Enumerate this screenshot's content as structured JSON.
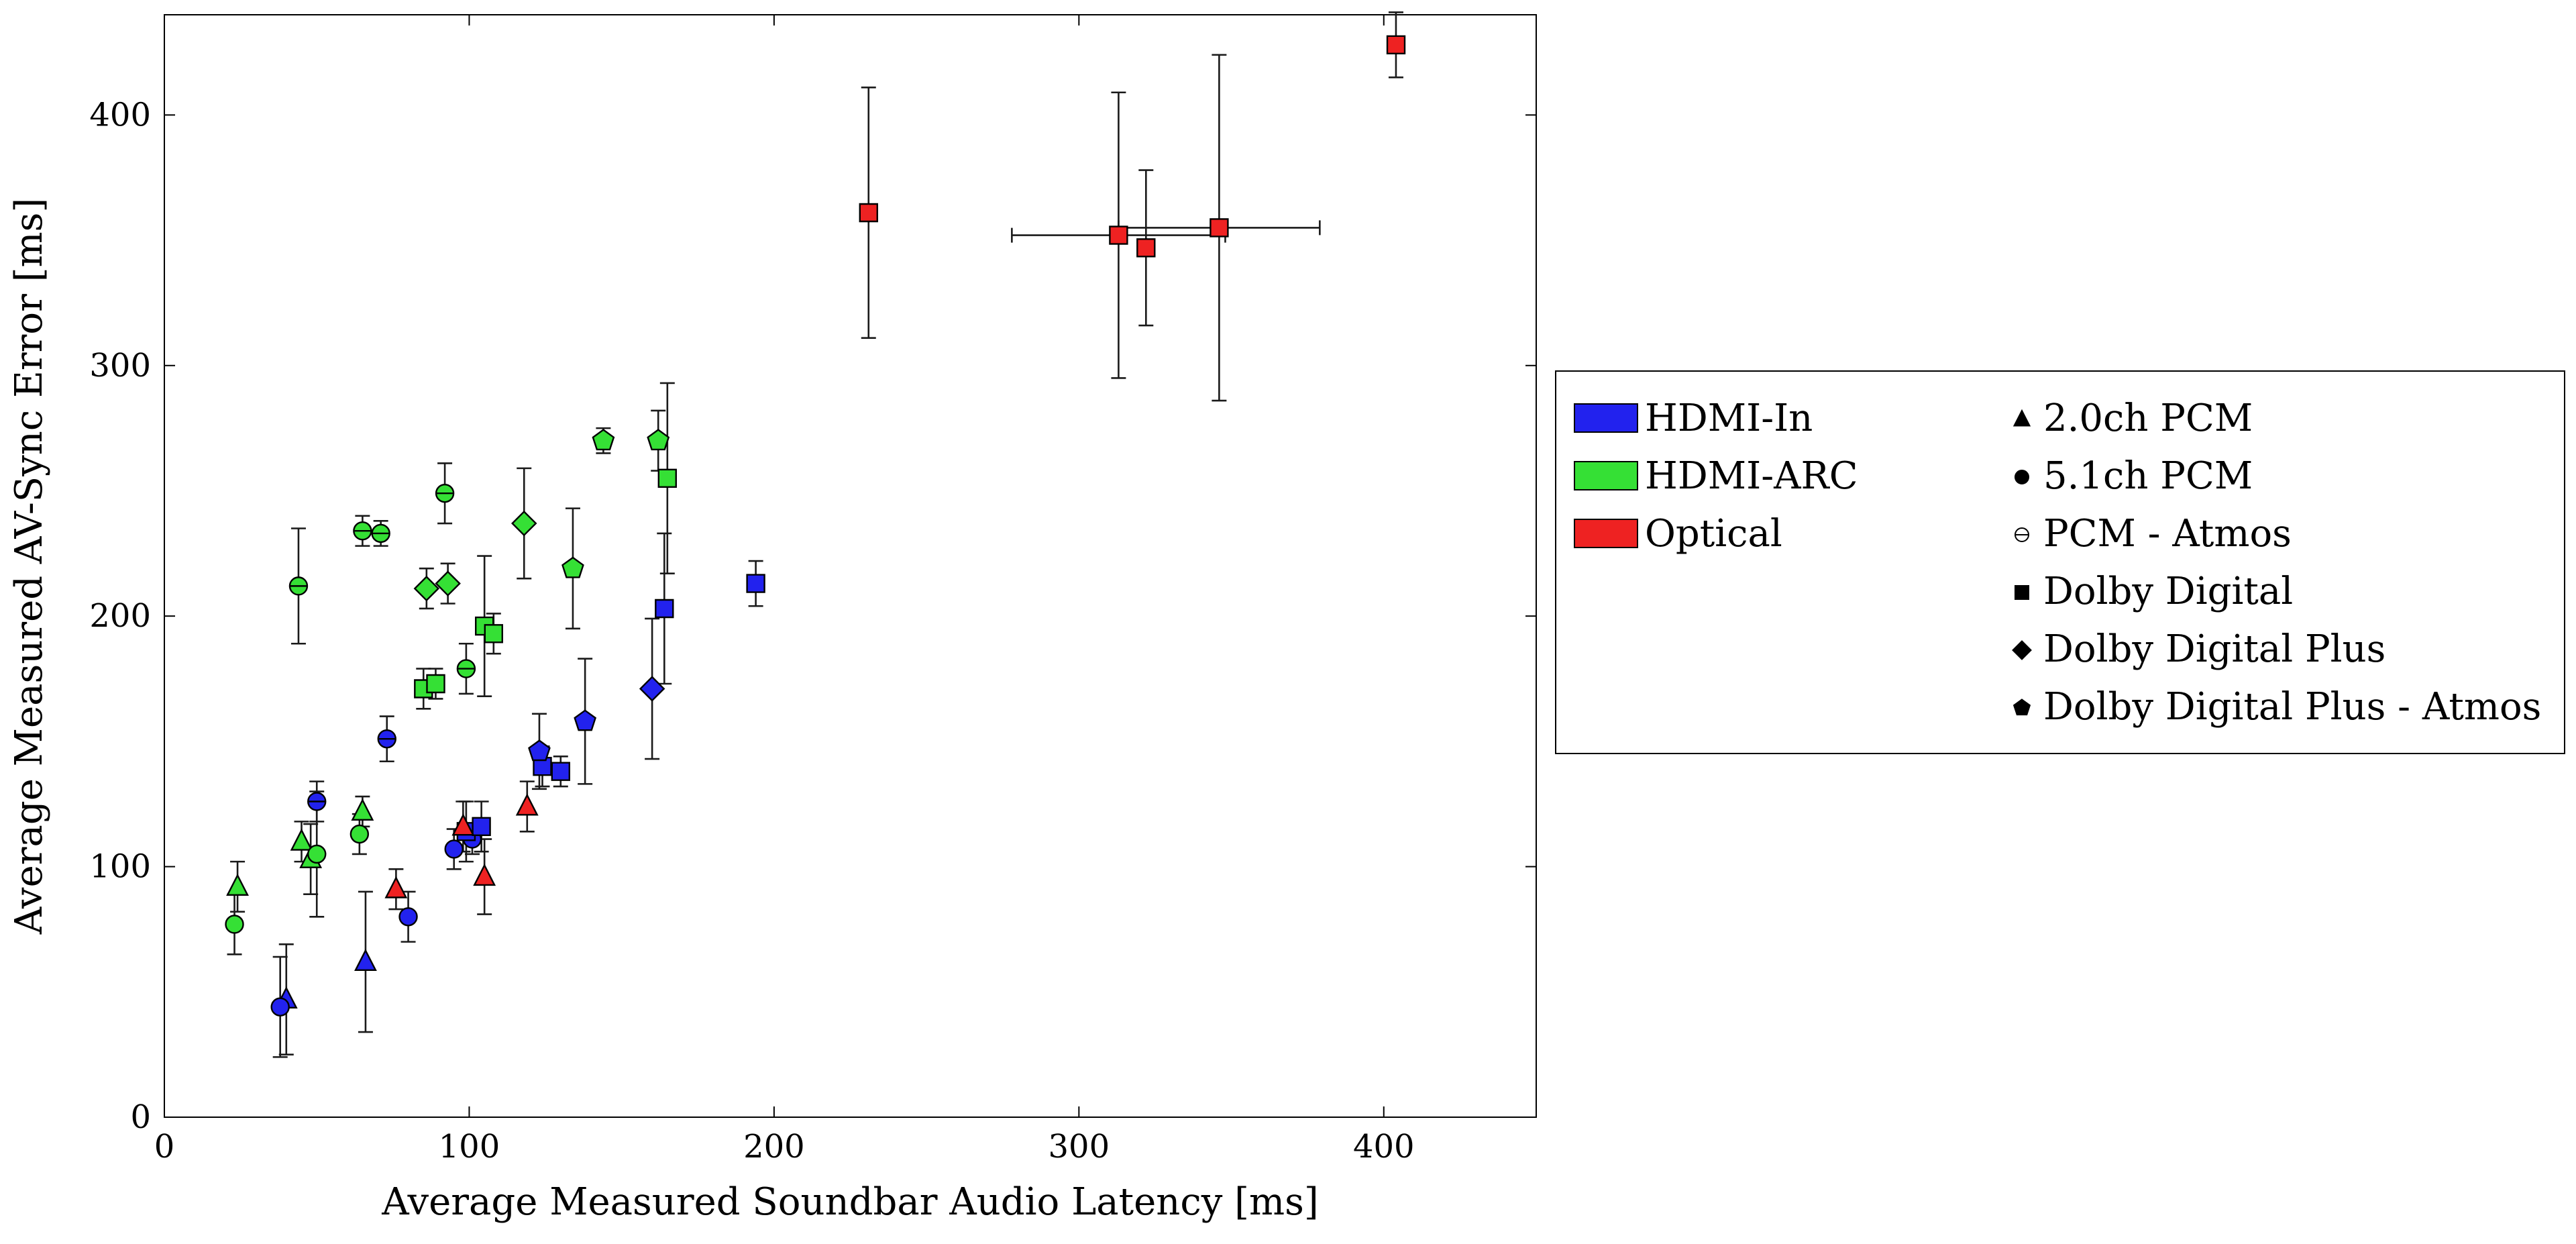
{
  "chart_data": {
    "type": "scatter",
    "title": "",
    "xlabel": "Average Measured Soundbar Audio Latency [ms]",
    "ylabel": "Average Measured AV-Sync Error [ms]",
    "xlim": [
      0,
      450
    ],
    "ylim": [
      0,
      440
    ],
    "xticks": [
      0,
      100,
      200,
      300,
      400
    ],
    "yticks": [
      0,
      100,
      200,
      300,
      400
    ],
    "grid": false,
    "legend_position": "right-outside",
    "series": [
      {
        "name": "HDMI-In / 2.0ch PCM",
        "connection": "HDMI-In",
        "format": "2.0ch PCM",
        "color": "#2222ee",
        "marker": "triangle",
        "points": [
          {
            "x": 40,
            "y": 47,
            "yerr": 22
          },
          {
            "x": 66,
            "y": 62,
            "yerr": 28
          }
        ]
      },
      {
        "name": "HDMI-In / 5.1ch PCM",
        "connection": "HDMI-In",
        "format": "5.1ch PCM",
        "color": "#2222ee",
        "marker": "circle",
        "points": [
          {
            "x": 38,
            "y": 44,
            "yerr": 20
          },
          {
            "x": 80,
            "y": 80,
            "yerr": 10
          },
          {
            "x": 95,
            "y": 107,
            "yerr": 8
          },
          {
            "x": 101,
            "y": 111,
            "yerr": 6
          }
        ]
      },
      {
        "name": "HDMI-In / PCM - Atmos",
        "connection": "HDMI-In",
        "format": "PCM - Atmos",
        "color": "#2222ee",
        "marker": "circle-open",
        "points": [
          {
            "x": 50,
            "y": 126,
            "yerr": 8
          },
          {
            "x": 73,
            "y": 151,
            "yerr": 9
          }
        ]
      },
      {
        "name": "HDMI-In / Dolby Digital",
        "connection": "HDMI-In",
        "format": "Dolby Digital",
        "color": "#2222ee",
        "marker": "square",
        "points": [
          {
            "x": 99,
            "y": 114,
            "yerr": 12
          },
          {
            "x": 104,
            "y": 116,
            "yerr": 10
          },
          {
            "x": 124,
            "y": 140,
            "yerr": 8
          },
          {
            "x": 130,
            "y": 138,
            "yerr": 6
          },
          {
            "x": 164,
            "y": 203,
            "yerr": 30
          },
          {
            "x": 194,
            "y": 213,
            "yerr": 9
          }
        ]
      },
      {
        "name": "HDMI-In / Dolby Digital Plus",
        "connection": "HDMI-In",
        "format": "Dolby Digital Plus",
        "color": "#2222ee",
        "marker": "diamond",
        "points": [
          {
            "x": 160,
            "y": 171,
            "yerr": 28
          }
        ]
      },
      {
        "name": "HDMI-In / Dolby Digital Plus - Atmos",
        "connection": "HDMI-In",
        "format": "Dolby Digital Plus - Atmos",
        "color": "#2222ee",
        "marker": "pentagon",
        "points": [
          {
            "x": 123,
            "y": 146,
            "yerr": 15
          },
          {
            "x": 138,
            "y": 158,
            "yerr": 25
          }
        ]
      },
      {
        "name": "HDMI-ARC / 2.0ch PCM",
        "connection": "HDMI-ARC",
        "format": "2.0ch PCM",
        "color": "#35e035",
        "marker": "triangle",
        "points": [
          {
            "x": 24,
            "y": 92,
            "yerr": 10
          },
          {
            "x": 45,
            "y": 110,
            "yerr": 8
          },
          {
            "x": 48,
            "y": 103,
            "yerr": 14
          },
          {
            "x": 65,
            "y": 122,
            "yerr": 6
          }
        ]
      },
      {
        "name": "HDMI-ARC / 5.1ch PCM",
        "connection": "HDMI-ARC",
        "format": "5.1ch PCM",
        "color": "#35e035",
        "marker": "circle",
        "points": [
          {
            "x": 23,
            "y": 77,
            "yerr": 12
          },
          {
            "x": 50,
            "y": 105,
            "yerr": 25
          },
          {
            "x": 64,
            "y": 113,
            "yerr": 8
          }
        ]
      },
      {
        "name": "HDMI-ARC / PCM - Atmos",
        "connection": "HDMI-ARC",
        "format": "PCM - Atmos",
        "color": "#35e035",
        "marker": "circle-open",
        "points": [
          {
            "x": 44,
            "y": 212,
            "yerr": 23
          },
          {
            "x": 65,
            "y": 234,
            "yerr": 6
          },
          {
            "x": 71,
            "y": 233,
            "yerr": 5
          },
          {
            "x": 92,
            "y": 249,
            "yerr": 12
          },
          {
            "x": 99,
            "y": 179,
            "yerr": 10
          }
        ]
      },
      {
        "name": "HDMI-ARC / Dolby Digital",
        "connection": "HDMI-ARC",
        "format": "Dolby Digital",
        "color": "#35e035",
        "marker": "square",
        "points": [
          {
            "x": 85,
            "y": 171,
            "yerr": 8
          },
          {
            "x": 89,
            "y": 173,
            "yerr": 6
          },
          {
            "x": 105,
            "y": 196,
            "yerr": 28
          },
          {
            "x": 108,
            "y": 193,
            "yerr": 8
          },
          {
            "x": 165,
            "y": 255,
            "yerr": 38
          }
        ]
      },
      {
        "name": "HDMI-ARC / Dolby Digital Plus",
        "connection": "HDMI-ARC",
        "format": "Dolby Digital Plus",
        "color": "#35e035",
        "marker": "diamond",
        "points": [
          {
            "x": 86,
            "y": 211,
            "yerr": 8
          },
          {
            "x": 93,
            "y": 213,
            "yerr": 8
          },
          {
            "x": 118,
            "y": 237,
            "yerr": 22
          }
        ]
      },
      {
        "name": "HDMI-ARC / Dolby Digital Plus - Atmos",
        "connection": "HDMI-ARC",
        "format": "Dolby Digital Plus - Atmos",
        "color": "#35e035",
        "marker": "pentagon",
        "points": [
          {
            "x": 134,
            "y": 219,
            "yerr": 24
          },
          {
            "x": 144,
            "y": 270,
            "yerr": 5
          },
          {
            "x": 162,
            "y": 270,
            "yerr": 12
          }
        ]
      },
      {
        "name": "Optical / 2.0ch PCM",
        "connection": "Optical",
        "format": "2.0ch PCM",
        "color": "#ee2222",
        "marker": "triangle",
        "points": [
          {
            "x": 76,
            "y": 91,
            "yerr": 8
          },
          {
            "x": 98,
            "y": 116,
            "yerr": 10
          },
          {
            "x": 105,
            "y": 96,
            "yerr": 15
          },
          {
            "x": 119,
            "y": 124,
            "yerr": 10
          }
        ]
      },
      {
        "name": "Optical / Dolby Digital",
        "connection": "Optical",
        "format": "Dolby Digital",
        "color": "#ee2222",
        "marker": "square",
        "points": [
          {
            "x": 231,
            "y": 361,
            "yerr": 50
          },
          {
            "x": 313,
            "y": 352,
            "yerr": 57,
            "xerr": 35
          },
          {
            "x": 322,
            "y": 347,
            "yerr": 31
          },
          {
            "x": 346,
            "y": 355,
            "yerr": 69,
            "xerr": 33
          },
          {
            "x": 404,
            "y": 428,
            "yerr": 13
          }
        ]
      }
    ]
  },
  "legend": {
    "connections": [
      {
        "label": "HDMI-In",
        "color": "#2222ee"
      },
      {
        "label": "HDMI-ARC",
        "color": "#35e035"
      },
      {
        "label": "Optical",
        "color": "#ee2222"
      }
    ],
    "formats": [
      {
        "label": "2.0ch PCM",
        "marker": "triangle"
      },
      {
        "label": "5.1ch PCM",
        "marker": "circle"
      },
      {
        "label": "PCM - Atmos",
        "marker": "circle-open"
      },
      {
        "label": "Dolby Digital",
        "marker": "square"
      },
      {
        "label": "Dolby Digital Plus",
        "marker": "diamond"
      },
      {
        "label": "Dolby Digital Plus - Atmos",
        "marker": "pentagon"
      }
    ]
  }
}
